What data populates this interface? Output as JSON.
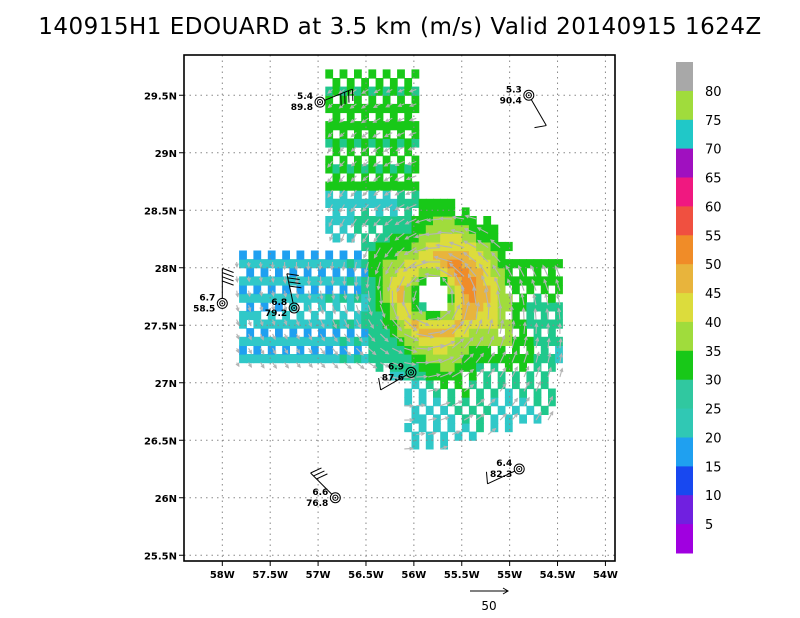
{
  "title": "140915H1 EDOUARD at 3.5 km (m/s) Valid 20140915 1624Z",
  "chart_data": {
    "type": "heatmap",
    "quantity": "m/s",
    "xlim": [
      -58.4,
      -53.9
    ],
    "ylim": [
      25.45,
      29.85
    ],
    "x_ticks": [
      {
        "value": -58.0,
        "label": "58W"
      },
      {
        "value": -57.5,
        "label": "57.5W"
      },
      {
        "value": -57.0,
        "label": "57W"
      },
      {
        "value": -56.5,
        "label": "56.5W"
      },
      {
        "value": -56.0,
        "label": "56W"
      },
      {
        "value": -55.5,
        "label": "55.5W"
      },
      {
        "value": -55.0,
        "label": "55W"
      },
      {
        "value": -54.5,
        "label": "54.5W"
      },
      {
        "value": -54.0,
        "label": "54W"
      }
    ],
    "y_ticks": [
      {
        "value": 25.5,
        "label": "25.5N"
      },
      {
        "value": 26.0,
        "label": "26N"
      },
      {
        "value": 26.5,
        "label": "26.5N"
      },
      {
        "value": 27.0,
        "label": "27N"
      },
      {
        "value": 27.5,
        "label": "27.5N"
      },
      {
        "value": 28.0,
        "label": "28N"
      },
      {
        "value": 28.5,
        "label": "28.5N"
      },
      {
        "value": 29.0,
        "label": "29N"
      },
      {
        "value": 29.5,
        "label": "29.5N"
      }
    ],
    "grid": true,
    "storm_center": {
      "lon": -55.82,
      "lat": 27.72
    },
    "colorbar": {
      "labels": [
        "5",
        "10",
        "15",
        "20",
        "25",
        "30",
        "35",
        "40",
        "45",
        "50",
        "55",
        "60",
        "65",
        "70",
        "75",
        "80"
      ],
      "colors": [
        "#a000e0",
        "#7020e0",
        "#1848f0",
        "#1fa0f0",
        "#30c8b4",
        "#30c8a0",
        "#18c818",
        "#a0dc3c",
        "#dcdc3c",
        "#e8b43c",
        "#f08c28",
        "#f05040",
        "#f01880",
        "#a010c0",
        "#20c8c8",
        "#a0dc3c",
        "#a8a8a8"
      ]
    },
    "stations": [
      {
        "label_top": "5.4",
        "label_bottom": "89.8",
        "lon": -56.98,
        "lat": 29.44,
        "barb_dir": 68,
        "barb_flags": 4
      },
      {
        "label_top": "5.3",
        "label_bottom": "90.4",
        "lon": -54.8,
        "lat": 29.5,
        "barb_dir": 150,
        "barb_flags": 1
      },
      {
        "label_top": "6.7",
        "label_bottom": "58.5",
        "lon": -58.0,
        "lat": 27.69,
        "barb_dir": 0,
        "barb_flags": 4
      },
      {
        "label_top": "6.8",
        "label_bottom": "79.2",
        "lon": -57.25,
        "lat": 27.65,
        "barb_dir": 348,
        "barb_flags": 4
      },
      {
        "label_top": "6.9",
        "label_bottom": "87.6",
        "lon": -56.03,
        "lat": 27.09,
        "barb_dir": 240,
        "barb_flags": 1
      },
      {
        "label_top": "6.4",
        "label_bottom": "82.3",
        "lon": -54.9,
        "lat": 26.25,
        "barb_dir": 245,
        "barb_flags": 1
      },
      {
        "label_top": "6.6",
        "label_bottom": "76.8",
        "lon": -56.82,
        "lat": 26.0,
        "barb_dir": 315,
        "barb_flags": 3
      }
    ],
    "reference_vector": {
      "value": "50",
      "unit": "m/s"
    }
  }
}
